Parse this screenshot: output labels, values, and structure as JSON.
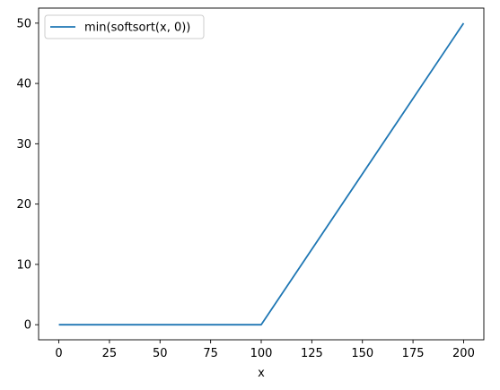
{
  "chart_data": {
    "type": "line",
    "title": "",
    "xlabel": "x",
    "ylabel": "",
    "xlim": [
      -10,
      210
    ],
    "ylim": [
      -2.5,
      52.5
    ],
    "xticks": [
      0,
      25,
      50,
      75,
      100,
      125,
      150,
      175,
      200
    ],
    "xtick_labels": [
      "0",
      "25",
      "50",
      "75",
      "100",
      "125",
      "150",
      "175",
      "200"
    ],
    "yticks": [
      0,
      10,
      20,
      30,
      40,
      50
    ],
    "ytick_labels": [
      "0",
      "10",
      "20",
      "30",
      "40",
      "50"
    ],
    "grid": false,
    "legend_position": "upper-left",
    "series": [
      {
        "name": "min(softsort(x, 0))",
        "color": "#1f77b4",
        "x": [
          0,
          100,
          200
        ],
        "y": [
          0,
          0,
          50
        ]
      }
    ]
  }
}
